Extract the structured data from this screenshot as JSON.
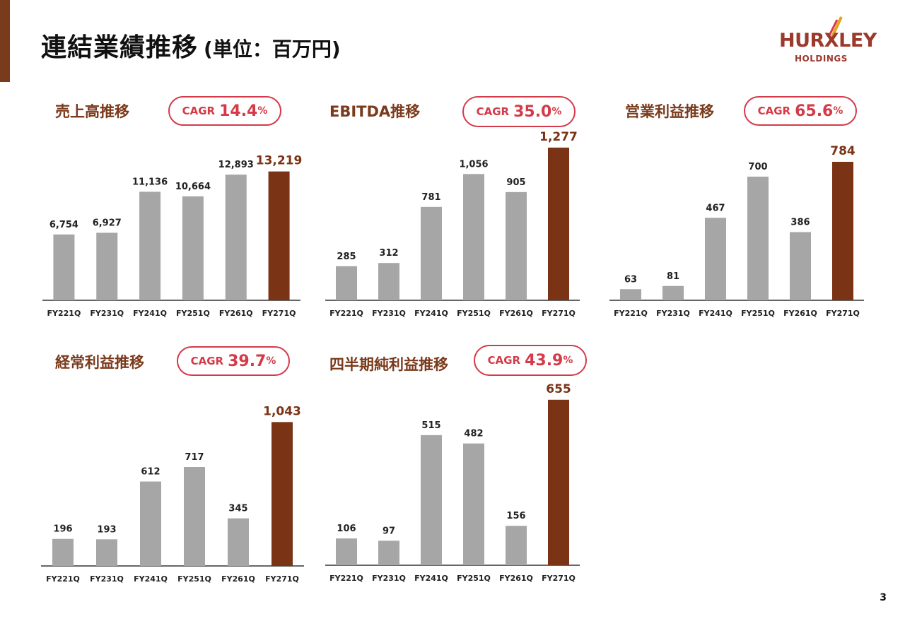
{
  "header": {
    "title": "連結業績推移",
    "unit": "(単位：百万円)"
  },
  "logo": {
    "brand": "HURXLEY",
    "sub": "HOLDINGS"
  },
  "page_number": "3",
  "colors": {
    "accent": "#7a3a1c",
    "bar_default": "#a6a6a6",
    "bar_highlight": "#7a3314",
    "cagr": "#d43a48"
  },
  "chart_data": [
    {
      "type": "bar",
      "title": "売上高推移",
      "cagr_label": "CAGR",
      "cagr_value": "14.4",
      "cagr_unit": "%",
      "categories": [
        "FY221Q",
        "FY231Q",
        "FY241Q",
        "FY251Q",
        "FY261Q",
        "FY271Q"
      ],
      "values": [
        6754,
        6927,
        11136,
        10664,
        12893,
        13219
      ],
      "value_labels": [
        "6,754",
        "6,927",
        "11,136",
        "10,664",
        "12,893",
        "13,219"
      ],
      "highlight_index": 5,
      "ylim": [
        0,
        14500
      ],
      "grid": false
    },
    {
      "type": "bar",
      "title": "EBITDA推移",
      "cagr_label": "CAGR",
      "cagr_value": "35.0",
      "cagr_unit": "%",
      "categories": [
        "FY221Q",
        "FY231Q",
        "FY241Q",
        "FY251Q",
        "FY261Q",
        "FY271Q"
      ],
      "values": [
        285,
        312,
        781,
        1056,
        905,
        1277
      ],
      "value_labels": [
        "285",
        "312",
        "781",
        "1,056",
        "905",
        "1,277"
      ],
      "highlight_index": 5,
      "ylim": [
        0,
        1300
      ],
      "grid": false
    },
    {
      "type": "bar",
      "title": "営業利益推移",
      "cagr_label": "CAGR",
      "cagr_value": "65.6",
      "cagr_unit": "%",
      "categories": [
        "FY221Q",
        "FY231Q",
        "FY241Q",
        "FY251Q",
        "FY261Q",
        "FY271Q"
      ],
      "values": [
        63,
        81,
        467,
        700,
        386,
        784
      ],
      "value_labels": [
        "63",
        "81",
        "467",
        "700",
        "386",
        "784"
      ],
      "highlight_index": 5,
      "ylim": [
        0,
        800
      ],
      "grid": false
    },
    {
      "type": "bar",
      "title": "経常利益推移",
      "cagr_label": "CAGR",
      "cagr_value": "39.7",
      "cagr_unit": "%",
      "categories": [
        "FY221Q",
        "FY231Q",
        "FY241Q",
        "FY251Q",
        "FY261Q",
        "FY271Q"
      ],
      "values": [
        196,
        193,
        612,
        717,
        345,
        1043
      ],
      "value_labels": [
        "196",
        "193",
        "612",
        "717",
        "345",
        "1,043"
      ],
      "highlight_index": 5,
      "ylim": [
        0,
        1050
      ],
      "grid": false
    },
    {
      "type": "bar",
      "title": "四半期純利益推移",
      "cagr_label": "CAGR",
      "cagr_value": "43.9",
      "cagr_unit": "%",
      "categories": [
        "FY221Q",
        "FY231Q",
        "FY241Q",
        "FY251Q",
        "FY261Q",
        "FY271Q"
      ],
      "values": [
        106,
        97,
        515,
        482,
        156,
        655
      ],
      "value_labels": [
        "106",
        "97",
        "515",
        "482",
        "156",
        "655"
      ],
      "highlight_index": 5,
      "ylim": [
        0,
        660
      ],
      "grid": false
    }
  ]
}
